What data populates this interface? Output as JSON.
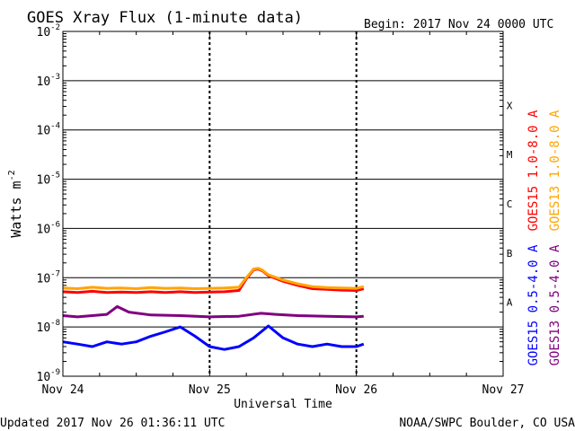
{
  "chart_data": {
    "type": "line",
    "title": "GOES Xray Flux (1-minute data)",
    "begin_label": "Begin:  2017 Nov 24 0000 UTC",
    "xlabel": "Universal Time",
    "ylabel": "Watts m",
    "ylabel_sup": "-2",
    "x_ticks": [
      "Nov 24",
      "Nov 25",
      "Nov 26",
      "Nov 27"
    ],
    "xlim_days": [
      0,
      3
    ],
    "y_scale": "log",
    "ylim": [
      1e-09,
      0.01
    ],
    "y_ticks": [
      {
        "base": "10",
        "exp": "-2"
      },
      {
        "base": "10",
        "exp": "-3"
      },
      {
        "base": "10",
        "exp": "-4"
      },
      {
        "base": "10",
        "exp": "-5"
      },
      {
        "base": "10",
        "exp": "-6"
      },
      {
        "base": "10",
        "exp": "-7"
      },
      {
        "base": "10",
        "exp": "-8"
      },
      {
        "base": "10",
        "exp": "-9"
      }
    ],
    "flare_classes": [
      "X",
      "M",
      "C",
      "B",
      "A"
    ],
    "series": [
      {
        "name": "GOES15 1.0-8.0 A",
        "color": "#ff0000",
        "x": [
          0,
          0.1,
          0.2,
          0.3,
          0.4,
          0.5,
          0.6,
          0.7,
          0.8,
          0.9,
          1.0,
          1.1,
          1.2,
          1.25,
          1.3,
          1.33,
          1.36,
          1.4,
          1.5,
          1.6,
          1.7,
          1.8,
          1.9,
          2.0,
          2.05
        ],
        "y": [
          5.2e-08,
          5e-08,
          5.3e-08,
          5e-08,
          5.1e-08,
          5e-08,
          5.2e-08,
          5e-08,
          5.2e-08,
          5e-08,
          5.1e-08,
          5.2e-08,
          5.5e-08,
          9.5e-08,
          1.45e-07,
          1.5e-07,
          1.38e-07,
          1.1e-07,
          8.5e-08,
          7e-08,
          6e-08,
          5.8e-08,
          5.6e-08,
          5.5e-08,
          6e-08
        ]
      },
      {
        "name": "GOES13 1.0-8.0 A",
        "color": "#ffa500",
        "x": [
          0,
          0.1,
          0.2,
          0.3,
          0.4,
          0.5,
          0.6,
          0.7,
          0.8,
          0.9,
          1.0,
          1.1,
          1.2,
          1.25,
          1.3,
          1.33,
          1.36,
          1.4,
          1.5,
          1.6,
          1.7,
          1.8,
          1.9,
          2.0,
          2.05
        ],
        "y": [
          6.2e-08,
          6e-08,
          6.4e-08,
          6.1e-08,
          6.2e-08,
          6e-08,
          6.3e-08,
          6.1e-08,
          6.2e-08,
          6e-08,
          6.1e-08,
          6.2e-08,
          6.4e-08,
          1e-07,
          1.5e-07,
          1.55e-07,
          1.42e-07,
          1.15e-07,
          9e-08,
          7.5e-08,
          6.6e-08,
          6.3e-08,
          6.2e-08,
          6.1e-08,
          6.6e-08
        ]
      },
      {
        "name": "GOES13 0.5-4.0 A",
        "color": "#800080",
        "x": [
          0,
          0.1,
          0.2,
          0.3,
          0.37,
          0.45,
          0.6,
          0.8,
          1.0,
          1.2,
          1.35,
          1.45,
          1.6,
          1.8,
          2.0,
          2.05
        ],
        "y": [
          1.7e-08,
          1.6e-08,
          1.7e-08,
          1.8e-08,
          2.6e-08,
          2e-08,
          1.75e-08,
          1.7e-08,
          1.6e-08,
          1.65e-08,
          1.9e-08,
          1.8e-08,
          1.7e-08,
          1.65e-08,
          1.6e-08,
          1.65e-08
        ]
      },
      {
        "name": "GOES15 0.5-4.0 A",
        "color": "#0000ff",
        "x": [
          0,
          0.1,
          0.2,
          0.3,
          0.4,
          0.5,
          0.6,
          0.7,
          0.8,
          0.9,
          1.0,
          1.1,
          1.2,
          1.3,
          1.4,
          1.5,
          1.6,
          1.7,
          1.8,
          1.9,
          2.0,
          2.05
        ],
        "y": [
          5e-09,
          4.5e-09,
          4e-09,
          5e-09,
          4.5e-09,
          5e-09,
          6.5e-09,
          8e-09,
          1e-08,
          6.5e-09,
          4e-09,
          3.5e-09,
          4e-09,
          6e-09,
          1.05e-08,
          6e-09,
          4.5e-09,
          4e-09,
          4.5e-09,
          4e-09,
          4e-09,
          4.5e-09
        ]
      }
    ]
  },
  "footer": {
    "updated": "Updated 2017 Nov 26 01:36:11 UTC",
    "credit": "NOAA/SWPC Boulder, CO USA"
  }
}
